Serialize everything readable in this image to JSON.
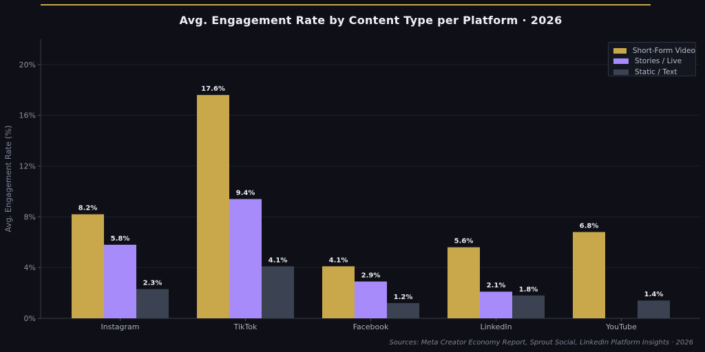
{
  "chart_data": {
    "type": "bar",
    "title": "Avg. Engagement Rate by Content Type per Platform · 2026",
    "ylabel": "Avg. Engagement Rate (%)",
    "xlabel": "",
    "categories": [
      "Instagram",
      "TikTok",
      "Facebook",
      "LinkedIn",
      "YouTube"
    ],
    "series": [
      {
        "name": "Short-Form Video",
        "color": "#c9a84c",
        "values": [
          8.2,
          17.6,
          4.1,
          5.6,
          6.8
        ],
        "labels": [
          "8.2%",
          "17.6%",
          "4.1%",
          "5.6%",
          "6.8%"
        ]
      },
      {
        "name": "Stories / Live",
        "color": "#a78bfa",
        "values": [
          5.8,
          9.4,
          2.9,
          2.1,
          null
        ],
        "labels": [
          "5.8%",
          "9.4%",
          "2.9%",
          "2.1%",
          ""
        ]
      },
      {
        "name": "Static / Text",
        "color": "#3b4252",
        "values": [
          2.3,
          4.1,
          1.2,
          1.8,
          1.4
        ],
        "labels": [
          "2.3%",
          "4.1%",
          "1.2%",
          "1.8%",
          "1.4%"
        ]
      }
    ],
    "ylim": [
      0,
      22
    ],
    "yticks": [
      0,
      4,
      8,
      12,
      16,
      20
    ],
    "ytick_labels": [
      "0%",
      "4%",
      "8%",
      "12%",
      "16%",
      "20%"
    ],
    "grid": true,
    "legend_position": "top-right",
    "source": "Sources: Meta Creator Economy Report, Sprout Social, LinkedIn Platform Insights · 2026"
  }
}
